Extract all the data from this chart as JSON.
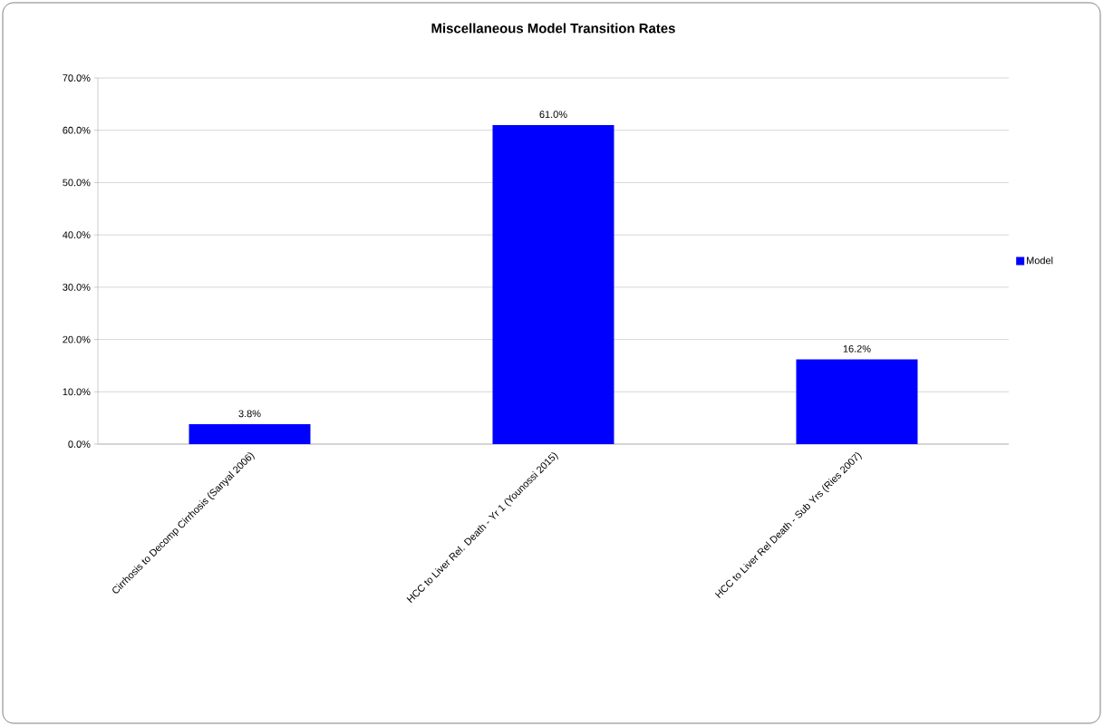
{
  "chart_data": {
    "type": "bar",
    "title": "Miscellaneous Model Transition Rates",
    "categories": [
      "Cirrhosis to Decomp Cirrhosis (Sanyal 2006)",
      "HCC to Liver Rel. Death - Yr 1 (Younossi 2015)",
      "HCC to Liver Rel Death - Sub Yrs (Ries 2007)"
    ],
    "series": [
      {
        "name": "Model",
        "color": "#0000ff",
        "values": [
          3.8,
          61.0,
          16.2
        ],
        "value_labels": [
          "3.8%",
          "61.0%",
          "16.2%"
        ]
      }
    ],
    "ylim": [
      0,
      70
    ],
    "yticks": [
      {
        "value": 0,
        "label": "0.0%"
      },
      {
        "value": 10,
        "label": "10.0%"
      },
      {
        "value": 20,
        "label": "20.0%"
      },
      {
        "value": 30,
        "label": "30.0%"
      },
      {
        "value": 40,
        "label": "40.0%"
      },
      {
        "value": 50,
        "label": "50.0%"
      },
      {
        "value": 60,
        "label": "60.0%"
      },
      {
        "value": 70,
        "label": "70.0%"
      }
    ],
    "grid": "y",
    "legend": "right"
  }
}
